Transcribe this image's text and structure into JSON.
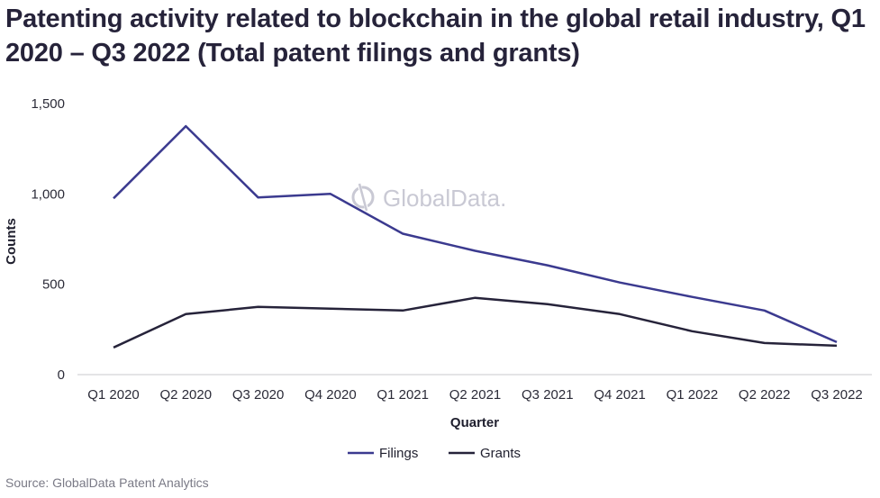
{
  "title": "Patenting activity related to blockchain in the global retail industry, Q1 2020 – Q3 2022 (Total patent filings and grants)",
  "source": "Source: GlobalData Patent Analytics",
  "watermark": "GlobalData.",
  "colors": {
    "filings": "#3b3a8f",
    "grants": "#26233a",
    "axis": "#c8c8cc",
    "watermark": "#c9c9d4"
  },
  "chart_data": {
    "type": "line",
    "xlabel": "Quarter",
    "ylabel": "Counts",
    "ylim": [
      0,
      1500
    ],
    "yticks": [
      0,
      500,
      1000,
      1500
    ],
    "ytick_labels": [
      "0",
      "500",
      "1,000",
      "1,500"
    ],
    "grid": false,
    "legend_position": "bottom-center",
    "categories": [
      "Q1 2020",
      "Q2 2020",
      "Q3 2020",
      "Q4 2020",
      "Q1 2021",
      "Q2 2021",
      "Q3 2021",
      "Q4 2021",
      "Q1 2022",
      "Q2 2022",
      "Q3 2022"
    ],
    "series": [
      {
        "name": "Filings",
        "values": [
          975,
          1375,
          980,
          1000,
          780,
          685,
          605,
          510,
          430,
          355,
          180
        ]
      },
      {
        "name": "Grants",
        "values": [
          150,
          335,
          375,
          365,
          355,
          425,
          390,
          335,
          240,
          175,
          160
        ]
      }
    ]
  }
}
